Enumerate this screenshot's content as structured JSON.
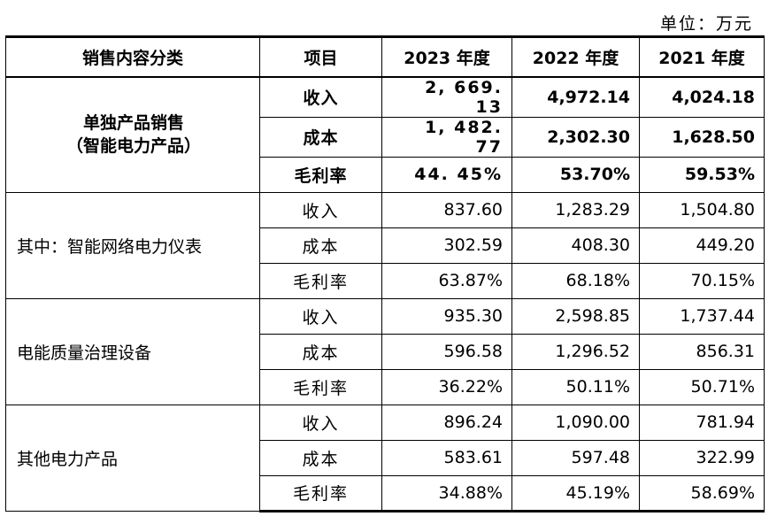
{
  "unit_label": "单位：万元",
  "headers": [
    "销售内容分类",
    "项目",
    "2023 年度",
    "2022 年度",
    "2021 年度"
  ],
  "groups": [
    {
      "category_lines": [
        "单独产品销售",
        "（智能电力产品）"
      ],
      "rows": [
        {
          "item": "收入",
          "v2023": "2, 669. 13",
          "v2022": "4,972.14",
          "v2021": "4,024.18"
        },
        {
          "item": "成本",
          "v2023": "1, 482. 77",
          "v2022": "2,302.30",
          "v2021": "1,628.50"
        },
        {
          "item": "毛利率",
          "v2023": "44. 45%",
          "v2022": "53.70%",
          "v2021": "59.53%"
        }
      ]
    },
    {
      "category_lines": [
        "其中：智能网络电力仪表"
      ],
      "rows": [
        {
          "item": "收入",
          "v2023": "837.60",
          "v2022": "1,283.29",
          "v2021": "1,504.80"
        },
        {
          "item": "成本",
          "v2023": "302.59",
          "v2022": "408.30",
          "v2021": "449.20"
        },
        {
          "item": "毛利率",
          "v2023": "63.87%",
          "v2022": "68.18%",
          "v2021": "70.15%"
        }
      ]
    },
    {
      "category_lines": [
        "电能质量治理设备"
      ],
      "rows": [
        {
          "item": "收入",
          "v2023": "935.30",
          "v2022": "2,598.85",
          "v2021": "1,737.44"
        },
        {
          "item": "成本",
          "v2023": "596.58",
          "v2022": "1,296.52",
          "v2021": "856.31"
        },
        {
          "item": "毛利率",
          "v2023": "36.22%",
          "v2022": "50.11%",
          "v2021": "50.71%"
        }
      ]
    },
    {
      "category_lines": [
        "其他电力产品"
      ],
      "rows": [
        {
          "item": "收入",
          "v2023": "896.24",
          "v2022": "1,090.00",
          "v2021": "781.94"
        },
        {
          "item": "成本",
          "v2023": "583.61",
          "v2022": "597.48",
          "v2021": "322.99"
        },
        {
          "item": "毛利率",
          "v2023": "34.88%",
          "v2022": "45.19%",
          "v2021": "58.69%"
        }
      ]
    }
  ]
}
